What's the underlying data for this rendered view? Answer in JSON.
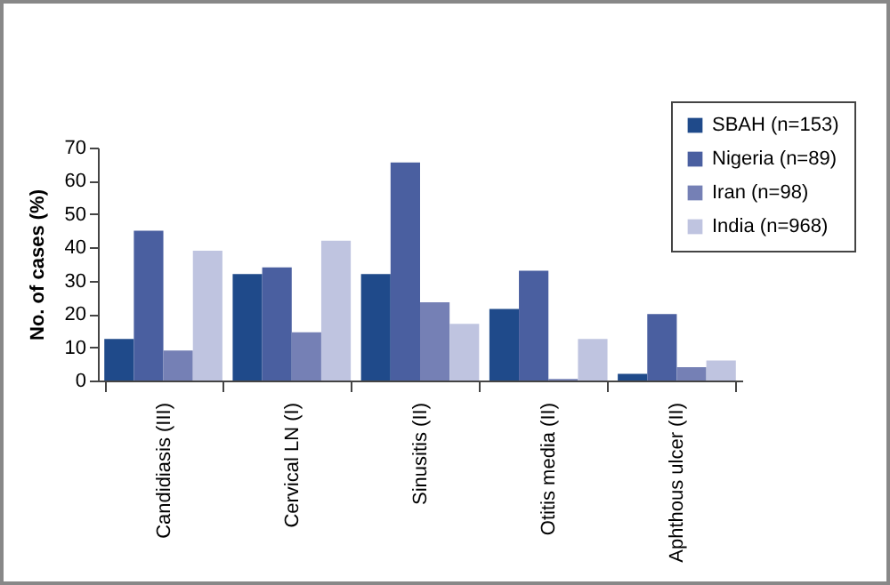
{
  "chart_data": {
    "type": "bar",
    "ylabel": "No. of cases (%)",
    "categories": [
      "Candidiasis (III)",
      "Cervical LN (I)",
      "Sinusitis (II)",
      "Otitis media (II)",
      "Aphthous ulcer (II)"
    ],
    "series": [
      {
        "name": "SBAH (n=153)",
        "color": "#1f4a8a",
        "values": [
          12.5,
          32,
          32,
          21.5,
          2
        ]
      },
      {
        "name": "Nigeria (n=89)",
        "color": "#4a5fa0",
        "values": [
          45,
          34,
          65.5,
          33,
          20
        ]
      },
      {
        "name": "Iran (n=98)",
        "color": "#7580b5",
        "values": [
          9,
          14.5,
          23.5,
          0.5,
          4
        ]
      },
      {
        "name": "India (n=968)",
        "color": "#bfc4e0",
        "values": [
          39,
          42,
          17,
          12.5,
          6
        ]
      }
    ],
    "ylim": [
      0,
      70
    ],
    "yticks": [
      0,
      10,
      20,
      30,
      40,
      50,
      60,
      70
    ],
    "grid": false,
    "legend": "top right"
  }
}
